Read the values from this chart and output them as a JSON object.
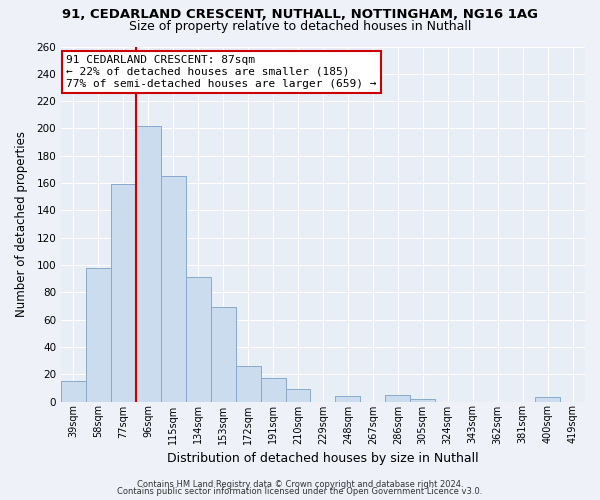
{
  "title_line1": "91, CEDARLAND CRESCENT, NUTHALL, NOTTINGHAM, NG16 1AG",
  "title_line2": "Size of property relative to detached houses in Nuthall",
  "xlabel": "Distribution of detached houses by size in Nuthall",
  "ylabel": "Number of detached properties",
  "bar_labels": [
    "39sqm",
    "58sqm",
    "77sqm",
    "96sqm",
    "115sqm",
    "134sqm",
    "153sqm",
    "172sqm",
    "191sqm",
    "210sqm",
    "229sqm",
    "248sqm",
    "267sqm",
    "286sqm",
    "305sqm",
    "324sqm",
    "343sqm",
    "362sqm",
    "381sqm",
    "400sqm",
    "419sqm"
  ],
  "bar_values": [
    15,
    98,
    159,
    202,
    165,
    91,
    69,
    26,
    17,
    9,
    0,
    4,
    0,
    5,
    2,
    0,
    0,
    0,
    0,
    3,
    0
  ],
  "bar_color": "#ccdcef",
  "bar_edgecolor": "#88aacc",
  "ylim": [
    0,
    260
  ],
  "yticks": [
    0,
    20,
    40,
    60,
    80,
    100,
    120,
    140,
    160,
    180,
    200,
    220,
    240,
    260
  ],
  "vline_color": "#cc0000",
  "vline_x_index": 2.5,
  "annotation_title": "91 CEDARLAND CRESCENT: 87sqm",
  "annotation_line1": "← 22% of detached houses are smaller (185)",
  "annotation_line2": "77% of semi-detached houses are larger (659) →",
  "footer_line1": "Contains HM Land Registry data © Crown copyright and database right 2024.",
  "footer_line2": "Contains public sector information licensed under the Open Government Licence v3.0.",
  "bg_color": "#eef2f8",
  "plot_bg_color": "#e8eef6",
  "grid_color": "#ffffff",
  "title_fontsize": 9.5,
  "subtitle_fontsize": 9,
  "ylabel_fontsize": 8.5,
  "xlabel_fontsize": 9
}
